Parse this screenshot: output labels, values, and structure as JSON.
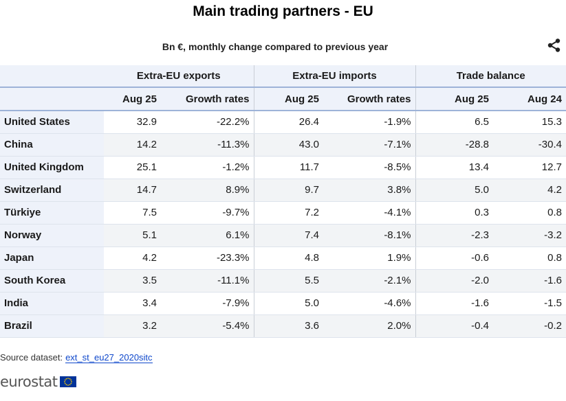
{
  "title": "Main trading partners - EU",
  "subtitle": "Bn €, monthly change compared to previous year",
  "icons": {
    "share": "share-icon",
    "flag": "eu-flag-icon"
  },
  "colors": {
    "header_bg": "#eef2fa",
    "header_rule": "#9db3d8",
    "link": "#0e47cb",
    "flag_blue": "#003399",
    "flag_star": "#ffcc00"
  },
  "chart_data": {
    "type": "table",
    "groups": [
      "Extra-EU exports",
      "Extra-EU imports",
      "Trade balance"
    ],
    "columns": [
      "Aug 25",
      "Growth rates",
      "Aug 25",
      "Growth rates",
      "Aug 25",
      "Aug 24"
    ],
    "rows": [
      {
        "country": "United States",
        "values": [
          "32.9",
          "-22.2%",
          "26.4",
          "-1.9%",
          "6.5",
          "15.3"
        ]
      },
      {
        "country": "China",
        "values": [
          "14.2",
          "-11.3%",
          "43.0",
          "-7.1%",
          "-28.8",
          "-30.4"
        ]
      },
      {
        "country": "United Kingdom",
        "values": [
          "25.1",
          "-1.2%",
          "11.7",
          "-8.5%",
          "13.4",
          "12.7"
        ]
      },
      {
        "country": "Switzerland",
        "values": [
          "14.7",
          "8.9%",
          "9.7",
          "3.8%",
          "5.0",
          "4.2"
        ]
      },
      {
        "country": "Türkiye",
        "values": [
          "7.5",
          "-9.7%",
          "7.2",
          "-4.1%",
          "0.3",
          "0.8"
        ]
      },
      {
        "country": "Norway",
        "values": [
          "5.1",
          "6.1%",
          "7.4",
          "-8.1%",
          "-2.3",
          "-3.2"
        ]
      },
      {
        "country": "Japan",
        "values": [
          "4.2",
          "-23.3%",
          "4.8",
          "1.9%",
          "-0.6",
          "0.8"
        ]
      },
      {
        "country": "South Korea",
        "values": [
          "3.5",
          "-11.1%",
          "5.5",
          "-2.1%",
          "-2.0",
          "-1.6"
        ]
      },
      {
        "country": "India",
        "values": [
          "3.4",
          "-7.9%",
          "5.0",
          "-4.6%",
          "-1.6",
          "-1.5"
        ]
      },
      {
        "country": "Brazil",
        "values": [
          "3.2",
          "-5.4%",
          "3.6",
          "2.0%",
          "-0.4",
          "-0.2"
        ]
      }
    ]
  },
  "source": {
    "label": "Source dataset:",
    "link_text": "ext_st_eu27_2020sitc"
  },
  "logo": {
    "text": "eurostat"
  }
}
